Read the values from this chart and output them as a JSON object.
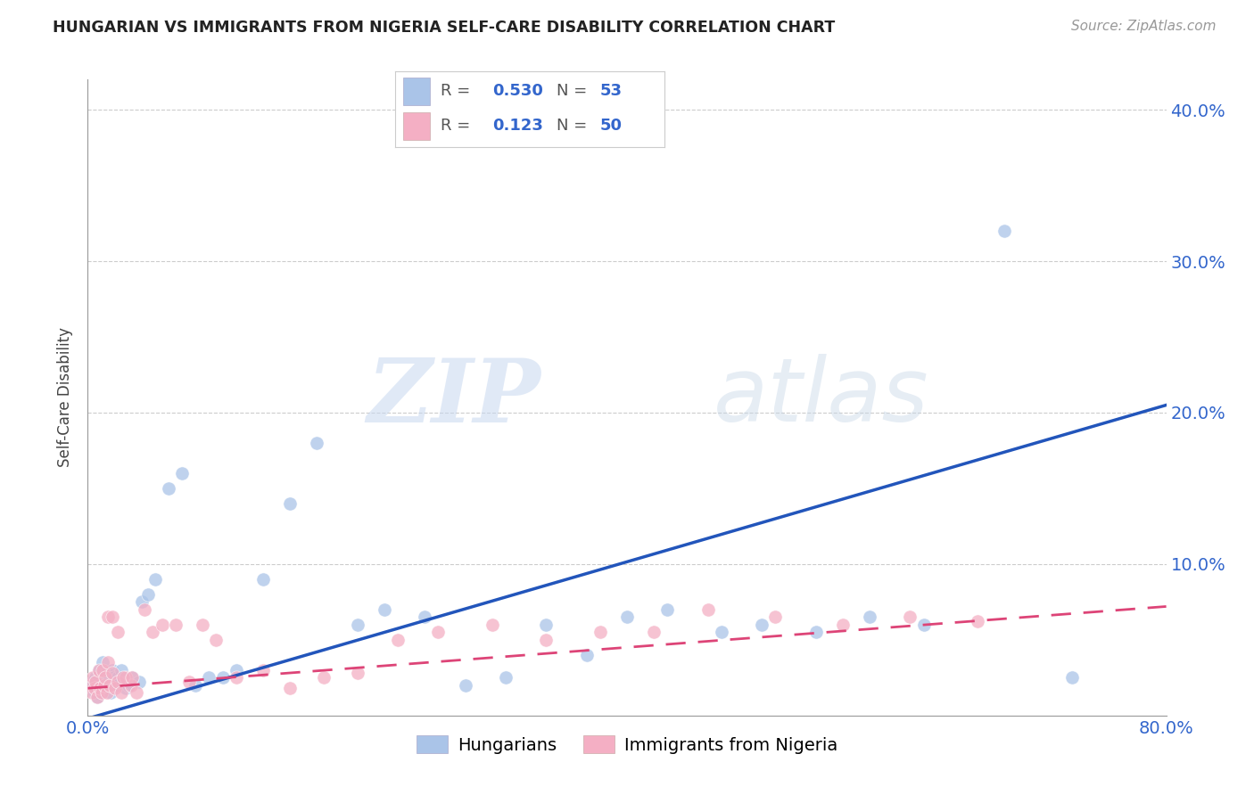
{
  "title": "HUNGARIAN VS IMMIGRANTS FROM NIGERIA SELF-CARE DISABILITY CORRELATION CHART",
  "source": "Source: ZipAtlas.com",
  "ylabel": "Self-Care Disability",
  "xlim": [
    0.0,
    0.8
  ],
  "ylim": [
    0.0,
    0.42
  ],
  "hungarian_R": 0.53,
  "hungarian_N": 53,
  "nigeria_R": 0.123,
  "nigeria_N": 50,
  "hungarian_color": "#aac4e8",
  "nigerian_color": "#f4afc4",
  "hungarian_line_color": "#2255bb",
  "nigerian_line_color": "#dd4477",
  "background_color": "#ffffff",
  "grid_color": "#cccccc",
  "watermark_zip": "ZIP",
  "watermark_atlas": "atlas",
  "hung_line_x0": 0.0,
  "hung_line_y0": -0.002,
  "hung_line_x1": 0.8,
  "hung_line_y1": 0.205,
  "nig_line_x0": 0.0,
  "nig_line_y0": 0.018,
  "nig_line_x1": 0.8,
  "nig_line_y1": 0.072,
  "hungarian_x": [
    0.002,
    0.003,
    0.004,
    0.005,
    0.006,
    0.007,
    0.008,
    0.009,
    0.01,
    0.011,
    0.012,
    0.013,
    0.014,
    0.015,
    0.016,
    0.017,
    0.018,
    0.019,
    0.02,
    0.022,
    0.025,
    0.028,
    0.03,
    0.033,
    0.038,
    0.04,
    0.045,
    0.05,
    0.06,
    0.07,
    0.08,
    0.09,
    0.1,
    0.11,
    0.13,
    0.15,
    0.17,
    0.2,
    0.22,
    0.25,
    0.28,
    0.31,
    0.34,
    0.37,
    0.4,
    0.43,
    0.47,
    0.5,
    0.54,
    0.58,
    0.62,
    0.68,
    0.73
  ],
  "hungarian_y": [
    0.02,
    0.018,
    0.022,
    0.015,
    0.025,
    0.012,
    0.03,
    0.02,
    0.015,
    0.035,
    0.022,
    0.018,
    0.028,
    0.02,
    0.025,
    0.015,
    0.03,
    0.025,
    0.02,
    0.025,
    0.03,
    0.018,
    0.02,
    0.025,
    0.022,
    0.075,
    0.08,
    0.09,
    0.15,
    0.16,
    0.02,
    0.025,
    0.025,
    0.03,
    0.09,
    0.14,
    0.18,
    0.06,
    0.07,
    0.065,
    0.02,
    0.025,
    0.06,
    0.04,
    0.065,
    0.07,
    0.055,
    0.06,
    0.055,
    0.065,
    0.06,
    0.32,
    0.025
  ],
  "nigerian_x": [
    0.002,
    0.003,
    0.004,
    0.005,
    0.006,
    0.007,
    0.008,
    0.009,
    0.01,
    0.011,
    0.012,
    0.013,
    0.014,
    0.015,
    0.016,
    0.018,
    0.02,
    0.022,
    0.025,
    0.028,
    0.032,
    0.036,
    0.042,
    0.048,
    0.055,
    0.065,
    0.075,
    0.085,
    0.095,
    0.11,
    0.13,
    0.15,
    0.175,
    0.2,
    0.23,
    0.26,
    0.3,
    0.34,
    0.38,
    0.42,
    0.46,
    0.51,
    0.56,
    0.61,
    0.66,
    0.015,
    0.018,
    0.022,
    0.026,
    0.033
  ],
  "nigerian_y": [
    0.02,
    0.015,
    0.025,
    0.018,
    0.022,
    0.012,
    0.03,
    0.018,
    0.015,
    0.03,
    0.02,
    0.025,
    0.015,
    0.035,
    0.02,
    0.028,
    0.018,
    0.022,
    0.015,
    0.025,
    0.02,
    0.015,
    0.07,
    0.055,
    0.06,
    0.06,
    0.022,
    0.06,
    0.05,
    0.025,
    0.03,
    0.018,
    0.025,
    0.028,
    0.05,
    0.055,
    0.06,
    0.05,
    0.055,
    0.055,
    0.07,
    0.065,
    0.06,
    0.065,
    0.062,
    0.065,
    0.065,
    0.055,
    0.025,
    0.025
  ]
}
